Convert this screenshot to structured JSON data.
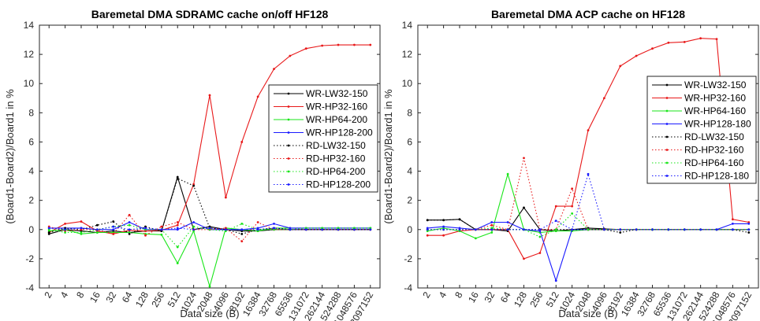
{
  "chart_data": [
    {
      "type": "line",
      "title": "Baremetal DMA SDRAMC cache on/off HF128",
      "xlabel": "Data size (B)",
      "ylabel": "(Board1-Board2)/Board1 in %",
      "ylim": [
        -4,
        14
      ],
      "yticks": [
        -4,
        -2,
        0,
        2,
        4,
        6,
        8,
        10,
        12,
        14
      ],
      "grid": false,
      "legend_position": "right",
      "categories": [
        "2",
        "4",
        "8",
        "16",
        "32",
        "64",
        "128",
        "256",
        "512",
        "1024",
        "2048",
        "4096",
        "8192",
        "16384",
        "32768",
        "65536",
        "131072",
        "262144",
        "524288",
        "1048576",
        "2097152"
      ],
      "series": [
        {
          "name": "WR-LW32-150",
          "color": "#000000",
          "style": "solid",
          "values": [
            -0.3,
            0.0,
            -0.1,
            -0.2,
            -0.1,
            -0.2,
            -0.1,
            -0.1,
            3.6,
            0.0,
            0.2,
            0.0,
            -0.1,
            -0.1,
            0.0,
            0.0,
            0.0,
            0.0,
            0.0,
            0.0,
            0.0
          ]
        },
        {
          "name": "WR-HP32-160",
          "color": "#e8191a",
          "style": "solid",
          "values": [
            -0.2,
            0.4,
            0.55,
            -0.1,
            -0.3,
            -0.05,
            -0.1,
            -0.05,
            0.3,
            3.1,
            9.2,
            2.2,
            6.0,
            9.1,
            11.0,
            11.9,
            12.4,
            12.6,
            12.65,
            12.65,
            12.65
          ]
        },
        {
          "name": "WR-HP64-200",
          "color": "#19e619",
          "style": "solid",
          "values": [
            -0.1,
            0.0,
            -0.3,
            -0.2,
            -0.2,
            -0.2,
            -0.3,
            -0.35,
            -2.3,
            -0.1,
            -3.9,
            0.1,
            0.0,
            -0.1,
            0.1,
            0.1,
            0.1,
            0.1,
            0.1,
            0.1,
            0.1
          ]
        },
        {
          "name": "WR-HP128-200",
          "color": "#1a1aff",
          "style": "solid",
          "values": [
            0.1,
            0.1,
            0.1,
            0.0,
            0.0,
            0.5,
            0.0,
            0.0,
            0.0,
            0.5,
            0.0,
            0.0,
            0.0,
            0.1,
            0.4,
            0.1,
            0.1,
            0.1,
            0.1,
            0.1,
            0.1
          ]
        },
        {
          "name": "RD-LW32-150",
          "color": "#000000",
          "style": "dotted",
          "values": [
            -0.2,
            0.1,
            0.0,
            0.3,
            0.55,
            -0.3,
            0.2,
            -0.1,
            3.5,
            3.0,
            0.1,
            0.0,
            -0.3,
            0.0,
            0.1,
            0.0,
            0.0,
            0.0,
            0.0,
            0.0,
            0.0
          ]
        },
        {
          "name": "RD-HP32-160",
          "color": "#e8191a",
          "style": "dotted",
          "values": [
            0.2,
            -0.1,
            0.0,
            0.0,
            -0.3,
            1.0,
            -0.4,
            0.2,
            0.5,
            0.0,
            0.0,
            0.1,
            -0.8,
            0.5,
            0.0,
            0.0,
            0.0,
            0.0,
            0.0,
            0.0,
            0.0
          ]
        },
        {
          "name": "RD-HP64-200",
          "color": "#19e619",
          "style": "dotted",
          "values": [
            0.0,
            -0.2,
            -0.2,
            0.0,
            0.2,
            0.3,
            0.0,
            0.0,
            -1.2,
            0.2,
            0.0,
            -0.1,
            0.4,
            0.0,
            0.0,
            0.0,
            0.1,
            0.1,
            0.1,
            0.1,
            0.1
          ]
        },
        {
          "name": "RD-HP128-200",
          "color": "#1a1aff",
          "style": "dotted",
          "values": [
            0.1,
            0.0,
            0.1,
            0.0,
            0.2,
            0.0,
            0.1,
            0.0,
            0.1,
            0.0,
            0.1,
            0.0,
            0.0,
            0.0,
            0.1,
            0.0,
            0.0,
            0.0,
            0.0,
            0.0,
            0.0
          ]
        }
      ]
    },
    {
      "type": "line",
      "title": "Baremetal DMA ACP cache on HF128",
      "xlabel": "Data size (B)",
      "ylabel": "(Board1-Board2)/Board1 in %",
      "ylim": [
        -4,
        14
      ],
      "yticks": [
        -4,
        -2,
        0,
        2,
        4,
        6,
        8,
        10,
        12,
        14
      ],
      "grid": false,
      "legend_position": "top-right",
      "categories": [
        "2",
        "4",
        "8",
        "16",
        "32",
        "64",
        "128",
        "256",
        "512",
        "1024",
        "2048",
        "4096",
        "8192",
        "16384",
        "32768",
        "65536",
        "131072",
        "262144",
        "524288",
        "1048576",
        "2097152"
      ],
      "series": [
        {
          "name": "WR-LW32-150",
          "color": "#000000",
          "style": "solid",
          "values": [
            0.65,
            0.65,
            0.7,
            0.0,
            0.0,
            -0.1,
            1.5,
            0.0,
            -0.1,
            0.0,
            0.1,
            0.05,
            0.0,
            0.0,
            0.0,
            0.0,
            0.0,
            0.0,
            0.0,
            0.0,
            0.0
          ]
        },
        {
          "name": "WR-HP32-160",
          "color": "#e8191a",
          "style": "solid",
          "values": [
            -0.4,
            -0.4,
            -0.1,
            0.0,
            0.0,
            0.0,
            -2.0,
            -1.6,
            1.6,
            1.6,
            6.8,
            9.0,
            11.2,
            11.9,
            12.4,
            12.8,
            12.85,
            13.1,
            13.05,
            0.7,
            0.5
          ]
        },
        {
          "name": "WR-HP64-160",
          "color": "#19e619",
          "style": "solid",
          "values": [
            -0.1,
            0.1,
            -0.1,
            -0.6,
            -0.2,
            3.8,
            0.0,
            -0.2,
            -0.1,
            -0.1,
            0.0,
            0.0,
            0.0,
            0.0,
            0.0,
            0.0,
            0.0,
            0.0,
            0.0,
            0.0,
            0.0
          ]
        },
        {
          "name": "WR-HP128-180",
          "color": "#1a1aff",
          "style": "solid",
          "values": [
            0.1,
            0.2,
            0.1,
            0.0,
            0.5,
            0.5,
            0.0,
            -0.1,
            -3.5,
            0.0,
            0.0,
            0.0,
            0.0,
            0.0,
            0.0,
            0.0,
            0.0,
            0.0,
            0.0,
            0.4,
            0.4
          ]
        },
        {
          "name": "RD-LW32-150",
          "color": "#000000",
          "style": "dotted",
          "values": [
            0.65,
            0.65,
            0.7,
            0.0,
            0.0,
            0.0,
            0.0,
            0.0,
            0.0,
            0.0,
            0.0,
            0.0,
            -0.2,
            0.0,
            0.0,
            0.0,
            0.0,
            0.0,
            0.0,
            0.0,
            -0.2
          ]
        },
        {
          "name": "RD-HP32-160",
          "color": "#e8191a",
          "style": "dotted",
          "values": [
            0.0,
            0.0,
            0.0,
            0.0,
            0.3,
            0.0,
            4.9,
            0.0,
            0.0,
            2.8,
            0.0,
            0.0,
            0.0,
            0.0,
            0.0,
            0.0,
            0.0,
            0.0,
            0.0,
            0.0,
            0.0
          ]
        },
        {
          "name": "RD-HP64-160",
          "color": "#19e619",
          "style": "dotted",
          "values": [
            0.0,
            0.0,
            0.0,
            0.0,
            0.1,
            0.0,
            0.0,
            -0.5,
            0.0,
            1.1,
            0.0,
            0.0,
            0.0,
            0.0,
            0.0,
            0.0,
            0.0,
            0.0,
            0.0,
            0.0,
            0.0
          ]
        },
        {
          "name": "RD-HP128-180",
          "color": "#1a1aff",
          "style": "dotted",
          "values": [
            0.0,
            0.0,
            0.0,
            0.0,
            0.0,
            0.0,
            0.0,
            0.0,
            0.6,
            0.0,
            3.8,
            0.0,
            0.0,
            0.0,
            0.0,
            0.0,
            0.0,
            0.0,
            0.0,
            0.0,
            0.0
          ]
        }
      ]
    }
  ]
}
